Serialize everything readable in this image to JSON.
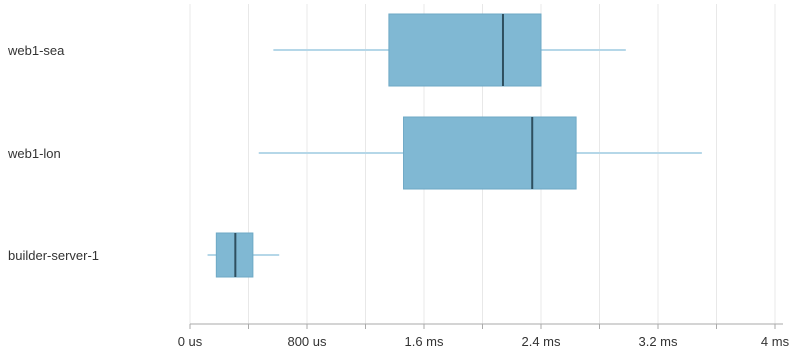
{
  "chart_data": {
    "type": "boxplot",
    "x_unit": "µs",
    "xlim": [
      0,
      4000
    ],
    "x_ticks": [
      {
        "value": 0,
        "label": "0 us"
      },
      {
        "value": 800,
        "label": "800 us"
      },
      {
        "value": 1600,
        "label": "1.6 ms"
      },
      {
        "value": 2400,
        "label": "2.4 ms"
      },
      {
        "value": 3200,
        "label": "3.2 ms"
      },
      {
        "value": 4000,
        "label": "4 ms"
      }
    ],
    "minor_ticks": [
      400,
      1200,
      2000,
      2800,
      3600
    ],
    "grid": true,
    "series": [
      {
        "name": "web1-sea",
        "min": 570,
        "q1": 1360,
        "median": 2140,
        "q3": 2400,
        "max": 2980
      },
      {
        "name": "web1-lon",
        "min": 470,
        "q1": 1460,
        "median": 2340,
        "q3": 2640,
        "max": 3500
      },
      {
        "name": "builder-server-1",
        "min": 120,
        "q1": 180,
        "median": 310,
        "q3": 430,
        "max": 610
      }
    ],
    "colors": {
      "box_fill": "#80B8D3",
      "box_stroke": "#6EA9C6",
      "median": "#2E4F5F",
      "whisker": "#B5D7E8",
      "grid": "#E8E8E8",
      "axis": "#AAAAAA",
      "text": "#333333"
    }
  }
}
